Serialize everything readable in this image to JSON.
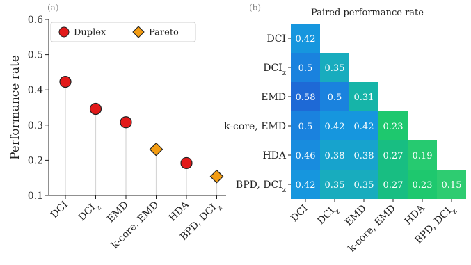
{
  "panels": {
    "a": "(a)",
    "b": "(b)"
  },
  "colors": {
    "duplex": "#e21a1a",
    "pareto": "#f39c12",
    "stem": "#d6d6d6"
  },
  "chart_data": [
    {
      "type": "scatter",
      "ylabel": "Performance rate",
      "ylim": [
        0.1,
        0.6
      ],
      "yticks": [
        "0.1",
        "0.2",
        "0.3",
        "0.4",
        "0.5",
        "0.6"
      ],
      "categories": [
        "DCI",
        "DCI_z",
        "EMD",
        "k-core, EMD",
        "HDA",
        "BPD, DCI_z"
      ],
      "legend": {
        "placement": "top-left",
        "items": [
          "Duplex",
          "Pareto"
        ]
      },
      "series": [
        {
          "name": "Duplex",
          "marker": "circle",
          "points": [
            {
              "category": "DCI",
              "value": 0.423
            },
            {
              "category": "DCI_z",
              "value": 0.346
            },
            {
              "category": "EMD",
              "value": 0.308
            },
            {
              "category": "HDA",
              "value": 0.192
            }
          ]
        },
        {
          "name": "Pareto",
          "marker": "diamond",
          "points": [
            {
              "category": "k-core, EMD",
              "value": 0.231
            },
            {
              "category": "BPD, DCI_z",
              "value": 0.154
            }
          ]
        }
      ]
    },
    {
      "type": "heatmap",
      "title": "Paired performance rate",
      "labels": [
        "DCI",
        "DCI_z",
        "EMD",
        "k-core, EMD",
        "HDA",
        "BPD, DCI_z"
      ],
      "matrix": [
        [
          0.42
        ],
        [
          0.5,
          0.35
        ],
        [
          0.58,
          0.5,
          0.31
        ],
        [
          0.5,
          0.42,
          0.42,
          0.23
        ],
        [
          0.46,
          0.38,
          0.38,
          0.27,
          0.19
        ],
        [
          0.42,
          0.35,
          0.35,
          0.27,
          0.23,
          0.15
        ]
      ]
    }
  ]
}
